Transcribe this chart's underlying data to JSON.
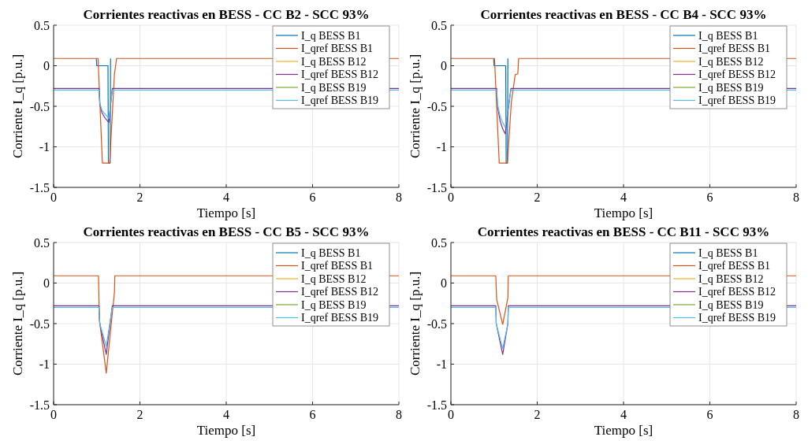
{
  "chart_data": [
    {
      "type": "line",
      "title": "Corrientes reactivas en BESS - CC B2 - SCC 93%",
      "xlabel": "Tiempo [s]",
      "ylabel": "Corriente I_q [p.u.]",
      "xlim": [
        0,
        8
      ],
      "ylim": [
        -1.5,
        0.5
      ],
      "xticks": [
        0,
        2,
        4,
        6,
        8
      ],
      "yticks": [
        -1.5,
        -1,
        -0.5,
        0,
        0.5
      ],
      "grid": true,
      "legend": "top right",
      "series": [
        {
          "name": "I_q BESS B1",
          "color": "#0072bd",
          "x": [
            0.99,
            1,
            1.26,
            1.27,
            1.31,
            1.32
          ],
          "values": [
            0.09,
            0,
            0,
            -1.2,
            -1.2,
            0.09
          ]
        },
        {
          "name": "I_qref BESS B1",
          "color": "#d95319",
          "x": [
            0,
            1.03,
            1.13,
            1.3,
            1.41,
            1.46,
            8
          ],
          "values": [
            0.09,
            0.09,
            -1.2,
            -1.2,
            -0.1,
            0.09,
            0.09
          ]
        },
        {
          "name": "I_q BESS B12",
          "color": "#edb120"
        },
        {
          "name": "I_qref BESS B12",
          "color": "#7e2f8e",
          "x": [
            0,
            1.05,
            1.07,
            1.12,
            1.2,
            1.28,
            1.36,
            8
          ],
          "values": [
            -0.28,
            -0.28,
            -0.47,
            -0.58,
            -0.65,
            -0.7,
            -0.28,
            -0.28
          ]
        },
        {
          "name": "I_q BESS B19",
          "color": "#77ac30"
        },
        {
          "name": "I_qref BESS B19",
          "color": "#4dbeee",
          "x": [
            0,
            1.05,
            1.07,
            1.12,
            1.2,
            1.28,
            1.36,
            8
          ],
          "values": [
            -0.3,
            -0.3,
            -0.46,
            -0.55,
            -0.6,
            -0.65,
            -0.3,
            -0.3
          ]
        }
      ]
    },
    {
      "type": "line",
      "title": "Corrientes reactivas en BESS - CC B4 - SCC 93%",
      "xlabel": "Tiempo [s]",
      "ylabel": "Corriente I_q [p.u.]",
      "xlim": [
        0,
        8
      ],
      "ylim": [
        -1.5,
        0.5
      ],
      "xticks": [
        0,
        2,
        4,
        6,
        8
      ],
      "yticks": [
        -1.5,
        -1,
        -0.5,
        0,
        0.5
      ],
      "grid": true,
      "legend": "top right",
      "series": [
        {
          "name": "I_q BESS B1",
          "color": "#0072bd",
          "x": [
            0.99,
            1,
            1.27,
            1.28,
            1.31,
            1.32
          ],
          "values": [
            0.09,
            0,
            0,
            -1.2,
            -1.2,
            0.09
          ]
        },
        {
          "name": "I_qref BESS B1",
          "color": "#d95319",
          "x": [
            0,
            1.01,
            1.12,
            1.31,
            1.4,
            1.49,
            1.55,
            1.57,
            8
          ],
          "values": [
            0.09,
            0.09,
            -1.2,
            -1.2,
            -0.45,
            -0.11,
            -0.1,
            0.09,
            0.09
          ]
        },
        {
          "name": "I_q BESS B12",
          "color": "#edb120"
        },
        {
          "name": "I_qref BESS B12",
          "color": "#7e2f8e",
          "x": [
            0,
            1.06,
            1.08,
            1.14,
            1.2,
            1.26,
            1.39,
            8
          ],
          "values": [
            -0.28,
            -0.28,
            -0.5,
            -0.68,
            -0.78,
            -0.84,
            -0.28,
            -0.28
          ]
        },
        {
          "name": "I_q BESS B19",
          "color": "#77ac30"
        },
        {
          "name": "I_qref BESS B19",
          "color": "#4dbeee",
          "x": [
            0,
            1.06,
            1.08,
            1.14,
            1.2,
            1.26,
            1.39,
            8
          ],
          "values": [
            -0.3,
            -0.3,
            -0.48,
            -0.62,
            -0.7,
            -0.76,
            -0.3,
            -0.3
          ]
        }
      ]
    },
    {
      "type": "line",
      "title": "Corrientes reactivas en BESS - CC B5 - SCC 93%",
      "xlabel": "Tiempo [s]",
      "ylabel": "Corriente I_q [p.u.]",
      "xlim": [
        0,
        8
      ],
      "ylim": [
        -1.5,
        0.5
      ],
      "xticks": [
        0,
        2,
        4,
        6,
        8
      ],
      "yticks": [
        -1.5,
        -1,
        -0.5,
        0,
        0.5
      ],
      "grid": true,
      "legend": "top right",
      "series": [
        {
          "name": "I_q BESS B1",
          "color": "#0072bd"
        },
        {
          "name": "I_qref BESS B1",
          "color": "#d95319",
          "x": [
            0,
            1.04,
            1.06,
            1.22,
            1.41,
            1.42,
            8
          ],
          "values": [
            0.09,
            0.09,
            -0.45,
            -1.11,
            -0.11,
            0.09,
            0.09
          ]
        },
        {
          "name": "I_q BESS B12",
          "color": "#edb120"
        },
        {
          "name": "I_qref BESS B12",
          "color": "#7e2f8e",
          "x": [
            0,
            1.05,
            1.07,
            1.22,
            1.36,
            8
          ],
          "values": [
            -0.28,
            -0.28,
            -0.5,
            -0.88,
            -0.28,
            -0.28
          ]
        },
        {
          "name": "I_q BESS B19",
          "color": "#77ac30"
        },
        {
          "name": "I_qref BESS B19",
          "color": "#4dbeee",
          "x": [
            0,
            1.05,
            1.07,
            1.22,
            1.36,
            8
          ],
          "values": [
            -0.3,
            -0.3,
            -0.5,
            -0.78,
            -0.3,
            -0.3
          ]
        }
      ]
    },
    {
      "type": "line",
      "title": "Corrientes reactivas en BESS - CC B11 - SCC 93%",
      "xlabel": "Tiempo [s]",
      "ylabel": "Corriente I_q [p.u.]",
      "xlim": [
        0,
        8
      ],
      "ylim": [
        -1.5,
        0.5
      ],
      "xticks": [
        0,
        2,
        4,
        6,
        8
      ],
      "yticks": [
        -1.5,
        -1,
        -0.5,
        0,
        0.5
      ],
      "grid": true,
      "legend": "top right",
      "series": [
        {
          "name": "I_q BESS B1",
          "color": "#0072bd"
        },
        {
          "name": "I_qref BESS B1",
          "color": "#d95319",
          "x": [
            0,
            1.04,
            1.06,
            1.2,
            1.32,
            1.33,
            8
          ],
          "values": [
            0.09,
            0.09,
            -0.2,
            -0.51,
            -0.18,
            0.09,
            0.09
          ]
        },
        {
          "name": "I_q BESS B12",
          "color": "#edb120"
        },
        {
          "name": "I_qref BESS B12",
          "color": "#7e2f8e",
          "x": [
            0,
            1.04,
            1.05,
            1.2,
            1.32,
            1.33,
            8
          ],
          "values": [
            -0.28,
            -0.28,
            -0.5,
            -0.88,
            -0.5,
            -0.28,
            -0.28
          ]
        },
        {
          "name": "I_q BESS B19",
          "color": "#77ac30"
        },
        {
          "name": "I_qref BESS B19",
          "color": "#4dbeee",
          "x": [
            0,
            1.04,
            1.05,
            1.2,
            1.32,
            1.33,
            8
          ],
          "values": [
            -0.3,
            -0.3,
            -0.5,
            -0.81,
            -0.5,
            -0.3,
            -0.3
          ]
        }
      ]
    }
  ]
}
